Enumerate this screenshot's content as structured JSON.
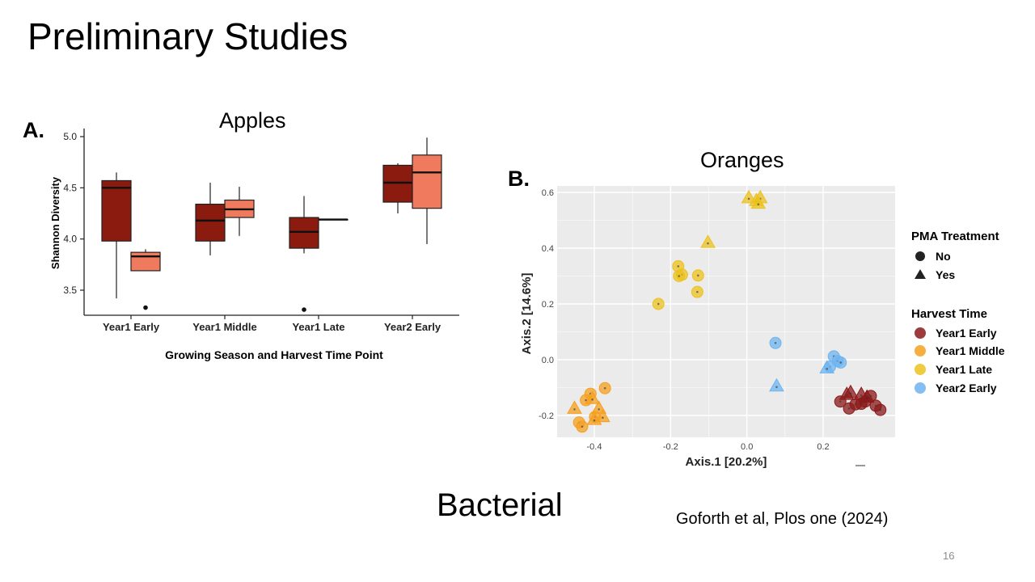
{
  "slide": {
    "title": "Preliminary Studies",
    "caption": "Bacterial",
    "citation": "Goforth et al, Plos one (2024)",
    "page_number": "16"
  },
  "chart_data": [
    {
      "type": "box",
      "panel_label": "A.",
      "title": "Apples",
      "xlabel": "Growing Season and Harvest Time Point",
      "ylabel": "Shannon Diversity",
      "ylim": [
        3.32,
        5.0
      ],
      "yticks": [
        "3.5",
        "4.0",
        "4.5",
        "5.0"
      ],
      "categories": [
        "Year1 Early",
        "Year1 Middle",
        "Year1 Late",
        "Year2 Early"
      ],
      "groups": [
        {
          "color": "#8b1a0f",
          "boxes": [
            {
              "min": 3.42,
              "q1": 3.98,
              "median": 4.5,
              "q3": 4.57,
              "max": 4.65,
              "outliers": []
            },
            {
              "min": 3.84,
              "q1": 3.98,
              "median": 4.18,
              "q3": 4.34,
              "max": 4.55,
              "outliers": []
            },
            {
              "min": 3.86,
              "q1": 3.91,
              "median": 4.07,
              "q3": 4.21,
              "max": 4.42,
              "outliers": [
                3.31
              ]
            },
            {
              "min": 4.25,
              "q1": 4.36,
              "median": 4.55,
              "q3": 4.72,
              "max": 4.74,
              "outliers": []
            }
          ]
        },
        {
          "color": "#f07a5e",
          "boxes": [
            {
              "min": 3.69,
              "q1": 3.69,
              "median": 3.83,
              "q3": 3.87,
              "max": 3.9,
              "outliers": [
                3.33
              ]
            },
            {
              "min": 4.03,
              "q1": 4.21,
              "median": 4.29,
              "q3": 4.38,
              "max": 4.51,
              "outliers": []
            },
            {
              "min": 4.19,
              "q1": 4.19,
              "median": 4.19,
              "q3": 4.19,
              "max": 4.19,
              "outliers": []
            },
            {
              "min": 3.95,
              "q1": 4.3,
              "median": 4.65,
              "q3": 4.82,
              "max": 4.99,
              "outliers": []
            }
          ]
        }
      ]
    },
    {
      "type": "scatter",
      "panel_label": "B.",
      "title": "Oranges",
      "xlabel": "Axis.1   [20.2%]",
      "ylabel": "Axis.2   [14.6%]",
      "xlim": [
        -0.49,
        0.39
      ],
      "ylim": [
        -0.285,
        0.62
      ],
      "xticks": [
        "-0.4",
        "-0.2",
        "0.0",
        "0.2"
      ],
      "yticks": [
        "-0.2",
        "0.0",
        "0.2",
        "0.4",
        "0.6"
      ],
      "background": "#ebebeb",
      "legend": {
        "placement": "right",
        "shape_title": "PMA Treatment",
        "shape_items": [
          {
            "label": "No",
            "shape": "circle"
          },
          {
            "label": "Yes",
            "shape": "triangle"
          }
        ],
        "color_title": "Harvest Time",
        "color_items": [
          {
            "label": "Year1 Early",
            "color": "#8b1a1a"
          },
          {
            "label": "Year1 Middle",
            "color": "#f5a020"
          },
          {
            "label": "Year1 Late",
            "color": "#ecc21e"
          },
          {
            "label": "Year2 Early",
            "color": "#6fb4f0"
          }
        ]
      },
      "series": [
        {
          "name": "Year1 Early",
          "color": "#8b1a1a",
          "points": [
            {
              "x": 0.245,
              "y": -0.15,
              "shape": "circle"
            },
            {
              "x": 0.268,
              "y": -0.175,
              "shape": "circle"
            },
            {
              "x": 0.285,
              "y": -0.16,
              "shape": "circle"
            },
            {
              "x": 0.3,
              "y": -0.158,
              "shape": "circle"
            },
            {
              "x": 0.31,
              "y": -0.15,
              "shape": "circle"
            },
            {
              "x": 0.325,
              "y": -0.13,
              "shape": "circle"
            },
            {
              "x": 0.338,
              "y": -0.165,
              "shape": "circle"
            },
            {
              "x": 0.35,
              "y": -0.18,
              "shape": "circle"
            },
            {
              "x": 0.262,
              "y": -0.125,
              "shape": "triangle"
            },
            {
              "x": 0.272,
              "y": -0.118,
              "shape": "triangle"
            },
            {
              "x": 0.3,
              "y": -0.125,
              "shape": "triangle"
            },
            {
              "x": 0.315,
              "y": -0.135,
              "shape": "triangle"
            }
          ]
        },
        {
          "name": "Year1 Middle",
          "color": "#f5a020",
          "points": [
            {
              "x": -0.372,
              "y": -0.102,
              "shape": "circle"
            },
            {
              "x": -0.41,
              "y": -0.122,
              "shape": "circle"
            },
            {
              "x": -0.422,
              "y": -0.145,
              "shape": "circle"
            },
            {
              "x": -0.44,
              "y": -0.225,
              "shape": "circle"
            },
            {
              "x": -0.432,
              "y": -0.24,
              "shape": "circle"
            },
            {
              "x": -0.398,
              "y": -0.205,
              "shape": "circle"
            },
            {
              "x": -0.452,
              "y": -0.175,
              "shape": "triangle"
            },
            {
              "x": -0.405,
              "y": -0.14,
              "shape": "triangle"
            },
            {
              "x": -0.388,
              "y": -0.175,
              "shape": "triangle"
            },
            {
              "x": -0.378,
              "y": -0.205,
              "shape": "triangle"
            },
            {
              "x": -0.4,
              "y": -0.215,
              "shape": "triangle"
            }
          ]
        },
        {
          "name": "Year1 Late",
          "color": "#ecc21e",
          "points": [
            {
              "x": -0.232,
              "y": 0.2,
              "shape": "circle"
            },
            {
              "x": -0.18,
              "y": 0.335,
              "shape": "circle"
            },
            {
              "x": -0.17,
              "y": 0.305,
              "shape": "circle"
            },
            {
              "x": -0.178,
              "y": 0.3,
              "shape": "circle"
            },
            {
              "x": -0.128,
              "y": 0.302,
              "shape": "circle"
            },
            {
              "x": -0.13,
              "y": 0.243,
              "shape": "circle"
            },
            {
              "x": -0.102,
              "y": 0.42,
              "shape": "triangle"
            },
            {
              "x": 0.005,
              "y": 0.58,
              "shape": "triangle"
            },
            {
              "x": 0.025,
              "y": 0.57,
              "shape": "triangle"
            },
            {
              "x": 0.035,
              "y": 0.58,
              "shape": "triangle"
            },
            {
              "x": 0.03,
              "y": 0.56,
              "shape": "triangle"
            }
          ]
        },
        {
          "name": "Year2 Early",
          "color": "#6fb4f0",
          "points": [
            {
              "x": 0.075,
              "y": 0.06,
              "shape": "circle"
            },
            {
              "x": 0.228,
              "y": 0.012,
              "shape": "circle"
            },
            {
              "x": 0.238,
              "y": -0.005,
              "shape": "circle"
            },
            {
              "x": 0.246,
              "y": -0.01,
              "shape": "circle"
            },
            {
              "x": 0.218,
              "y": -0.025,
              "shape": "circle"
            },
            {
              "x": 0.078,
              "y": -0.095,
              "shape": "triangle"
            },
            {
              "x": 0.21,
              "y": -0.03,
              "shape": "triangle"
            }
          ]
        }
      ]
    }
  ]
}
